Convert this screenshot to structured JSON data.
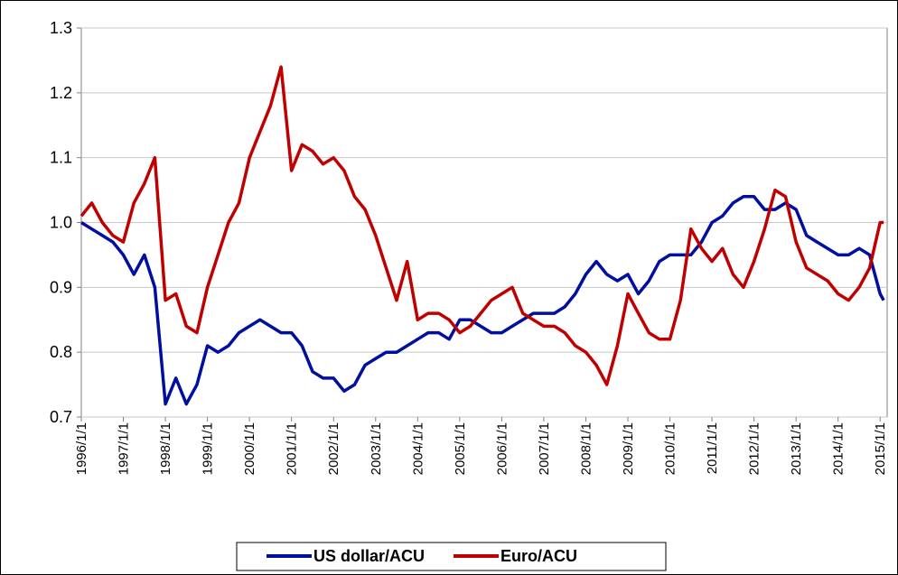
{
  "chart_data": {
    "type": "line",
    "x": [
      "1996/1/1",
      "1996/4/1",
      "1996/7/1",
      "1996/10/1",
      "1997/1/1",
      "1997/4/1",
      "1997/7/1",
      "1997/10/1",
      "1998/1/1",
      "1998/4/1",
      "1998/7/1",
      "1998/10/1",
      "1999/1/1",
      "1999/4/1",
      "1999/7/1",
      "1999/10/1",
      "2000/1/1",
      "2000/4/1",
      "2000/7/1",
      "2000/10/1",
      "2001/1/1",
      "2001/4/1",
      "2001/7/1",
      "2001/10/1",
      "2002/1/1",
      "2002/4/1",
      "2002/7/1",
      "2002/10/1",
      "2003/1/1",
      "2003/4/1",
      "2003/7/1",
      "2003/10/1",
      "2004/1/1",
      "2004/4/1",
      "2004/7/1",
      "2004/10/1",
      "2005/1/1",
      "2005/4/1",
      "2005/7/1",
      "2005/10/1",
      "2006/1/1",
      "2006/4/1",
      "2006/7/1",
      "2006/10/1",
      "2007/1/1",
      "2007/4/1",
      "2007/7/1",
      "2007/10/1",
      "2008/1/1",
      "2008/4/1",
      "2008/7/1",
      "2008/10/1",
      "2009/1/1",
      "2009/4/1",
      "2009/7/1",
      "2009/10/1",
      "2010/1/1",
      "2010/4/1",
      "2010/7/1",
      "2010/10/1",
      "2011/1/1",
      "2011/4/1",
      "2011/7/1",
      "2011/10/1",
      "2012/1/1",
      "2012/4/1",
      "2012/7/1",
      "2012/10/1",
      "2013/1/1",
      "2013/4/1",
      "2013/7/1",
      "2013/10/1",
      "2014/1/1",
      "2014/4/1",
      "2014/7/1",
      "2014/10/1",
      "2015/1/1",
      "2015/2/1"
    ],
    "series": [
      {
        "name": "US dollar/ACU",
        "color": "#000f9f",
        "values": [
          1.0,
          0.99,
          0.98,
          0.97,
          0.95,
          0.92,
          0.95,
          0.9,
          0.72,
          0.76,
          0.72,
          0.75,
          0.81,
          0.8,
          0.81,
          0.83,
          0.84,
          0.85,
          0.84,
          0.83,
          0.83,
          0.81,
          0.77,
          0.76,
          0.76,
          0.74,
          0.75,
          0.78,
          0.79,
          0.8,
          0.8,
          0.81,
          0.82,
          0.83,
          0.83,
          0.82,
          0.85,
          0.85,
          0.84,
          0.83,
          0.83,
          0.84,
          0.85,
          0.86,
          0.86,
          0.86,
          0.87,
          0.89,
          0.92,
          0.94,
          0.92,
          0.91,
          0.92,
          0.89,
          0.91,
          0.94,
          0.95,
          0.95,
          0.95,
          0.97,
          1.0,
          1.01,
          1.03,
          1.04,
          1.04,
          1.02,
          1.02,
          1.03,
          1.02,
          0.98,
          0.97,
          0.96,
          0.95,
          0.95,
          0.96,
          0.95,
          0.89,
          0.88
        ]
      },
      {
        "name": "Euro/ACU",
        "color": "#c00000",
        "values": [
          1.01,
          1.03,
          1.0,
          0.98,
          0.97,
          1.03,
          1.06,
          1.1,
          0.88,
          0.89,
          0.84,
          0.83,
          0.9,
          0.95,
          1.0,
          1.03,
          1.1,
          1.14,
          1.18,
          1.24,
          1.08,
          1.12,
          1.11,
          1.09,
          1.1,
          1.08,
          1.04,
          1.02,
          0.98,
          0.93,
          0.88,
          0.94,
          0.85,
          0.86,
          0.86,
          0.85,
          0.83,
          0.84,
          0.86,
          0.88,
          0.89,
          0.9,
          0.86,
          0.85,
          0.84,
          0.84,
          0.83,
          0.81,
          0.8,
          0.78,
          0.75,
          0.81,
          0.89,
          0.86,
          0.83,
          0.82,
          0.82,
          0.88,
          0.99,
          0.96,
          0.94,
          0.96,
          0.92,
          0.9,
          0.94,
          0.99,
          1.05,
          1.04,
          0.97,
          0.93,
          0.92,
          0.91,
          0.89,
          0.88,
          0.9,
          0.93,
          1.0,
          1.0
        ]
      }
    ],
    "xlim": [
      "1996/1/1",
      "2015/3/1"
    ],
    "xticks": [
      "1996/1/1",
      "1997/1/1",
      "1998/1/1",
      "1999/1/1",
      "2000/1/1",
      "2001/1/1",
      "2002/1/1",
      "2003/1/1",
      "2004/1/1",
      "2005/1/1",
      "2006/1/1",
      "2007/1/1",
      "2008/1/1",
      "2009/1/1",
      "2010/1/1",
      "2011/1/1",
      "2012/1/1",
      "2013/1/1",
      "2014/1/1",
      "2015/1/1"
    ],
    "ylim": [
      0.7,
      1.3
    ],
    "yticks": [
      {
        "value": 0.7,
        "label": "0.7"
      },
      {
        "value": 0.8,
        "label": "0.8"
      },
      {
        "value": 0.9,
        "label": "0.9"
      },
      {
        "value": 1.0,
        "label": "1.0"
      },
      {
        "value": 1.1,
        "label": "1.1"
      },
      {
        "value": 1.2,
        "label": "1.2"
      },
      {
        "value": 1.3,
        "label": "1.3"
      }
    ],
    "grid": true,
    "legend": "bottom"
  }
}
